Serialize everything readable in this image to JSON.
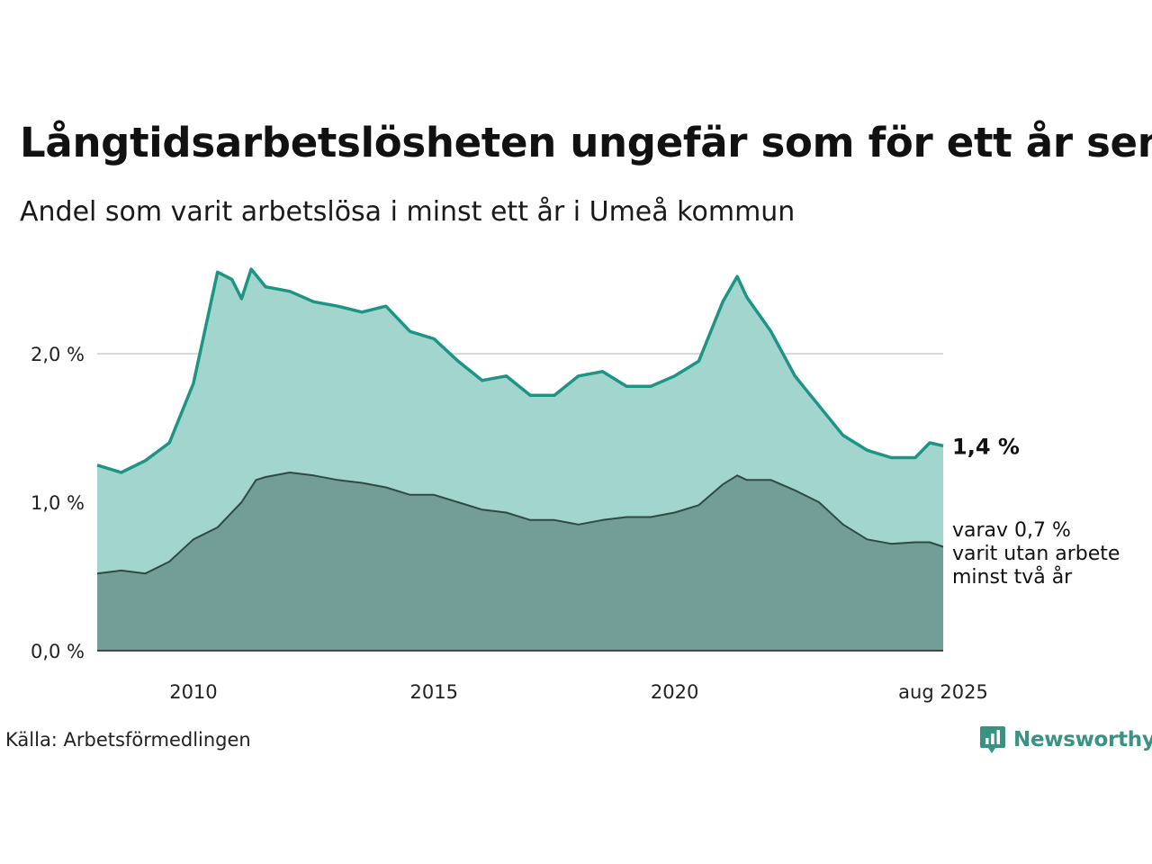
{
  "header": {
    "title": "Långtidsarbetslösheten ungefär som för ett år sen",
    "subtitle": "Andel som varit arbetslösa i minst ett år i Umeå kommun"
  },
  "footer": {
    "source": "Källa: Arbetsförmedlingen",
    "brand": "Newsworthy",
    "brand_icon": "newsworthy-logo-icon"
  },
  "colors": {
    "total_line": "#1e9484",
    "total_area": "#a3d5cf",
    "long_line": "#2f4a44",
    "long_area": "#729e97",
    "grid": "#d9d9d9"
  },
  "chart_data": {
    "type": "area",
    "x_range": [
      "2008-01",
      "2025-08"
    ],
    "ylim": [
      0,
      2.6
    ],
    "y_ticks": [
      0,
      1,
      2
    ],
    "y_tick_labels": [
      "0,0 %",
      "1,0 %",
      "2,0 %"
    ],
    "x_tick_labels": [
      {
        "year": 2010,
        "label": "2010"
      },
      {
        "year": 2015,
        "label": "2015"
      },
      {
        "year": 2020,
        "label": "2020"
      },
      {
        "year": 2025.58,
        "label": "aug 2025"
      }
    ],
    "grid": "horizontal",
    "end_label": "1,4 %",
    "note_lines": [
      "varav 0,7 %",
      "varit utan arbete",
      "minst två år"
    ],
    "series": [
      {
        "key": "total",
        "x": [
          2008.0,
          2008.5,
          2009.0,
          2009.5,
          2010.0,
          2010.3,
          2010.5,
          2010.8,
          2011.0,
          2011.2,
          2011.5,
          2012.0,
          2012.5,
          2013.0,
          2013.5,
          2014.0,
          2014.5,
          2015.0,
          2015.5,
          2016.0,
          2016.5,
          2017.0,
          2017.5,
          2018.0,
          2018.5,
          2019.0,
          2019.5,
          2020.0,
          2020.5,
          2021.0,
          2021.3,
          2021.5,
          2022.0,
          2022.5,
          2023.0,
          2023.5,
          2024.0,
          2024.5,
          2025.0,
          2025.3,
          2025.58
        ],
        "values": [
          1.25,
          1.2,
          1.28,
          1.4,
          1.8,
          2.25,
          2.55,
          2.5,
          2.37,
          2.57,
          2.45,
          2.42,
          2.35,
          2.32,
          2.28,
          2.32,
          2.15,
          2.1,
          1.95,
          1.82,
          1.85,
          1.72,
          1.72,
          1.85,
          1.88,
          1.78,
          1.78,
          1.85,
          1.95,
          2.35,
          2.52,
          2.38,
          2.15,
          1.85,
          1.65,
          1.45,
          1.35,
          1.3,
          1.3,
          1.4,
          1.38
        ]
      },
      {
        "key": "long",
        "x": [
          2008.0,
          2008.5,
          2009.0,
          2009.5,
          2010.0,
          2010.5,
          2011.0,
          2011.3,
          2011.5,
          2012.0,
          2012.5,
          2013.0,
          2013.5,
          2014.0,
          2014.5,
          2015.0,
          2015.5,
          2016.0,
          2016.5,
          2017.0,
          2017.5,
          2018.0,
          2018.5,
          2019.0,
          2019.5,
          2020.0,
          2020.5,
          2021.0,
          2021.3,
          2021.5,
          2022.0,
          2022.5,
          2023.0,
          2023.5,
          2024.0,
          2024.5,
          2025.0,
          2025.3,
          2025.58
        ],
        "values": [
          0.52,
          0.54,
          0.52,
          0.6,
          0.75,
          0.83,
          1.0,
          1.15,
          1.17,
          1.2,
          1.18,
          1.15,
          1.13,
          1.1,
          1.05,
          1.05,
          1.0,
          0.95,
          0.93,
          0.88,
          0.88,
          0.85,
          0.88,
          0.9,
          0.9,
          0.93,
          0.98,
          1.12,
          1.18,
          1.15,
          1.15,
          1.08,
          1.0,
          0.85,
          0.75,
          0.72,
          0.73,
          0.73,
          0.7
        ]
      }
    ]
  }
}
